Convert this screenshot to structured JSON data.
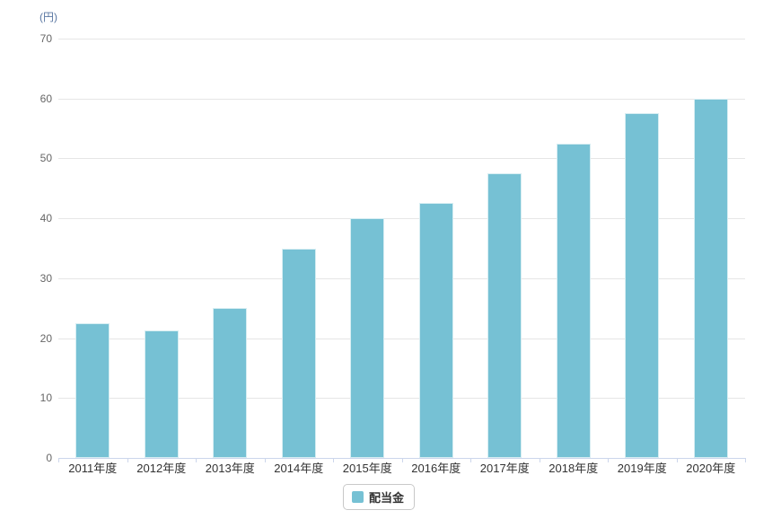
{
  "chart_data": {
    "type": "bar",
    "title": "",
    "unit_label": "(円)",
    "xlabel": "",
    "ylabel": "(円)",
    "categories": [
      "2011年度",
      "2012年度",
      "2013年度",
      "2014年度",
      "2015年度",
      "2016年度",
      "2017年度",
      "2018年度",
      "2019年度",
      "2020年度"
    ],
    "series": [
      {
        "name": "配当金",
        "values": [
          22.5,
          21.25,
          25,
          35,
          40,
          42.5,
          47.5,
          52.5,
          57.5,
          60
        ]
      }
    ],
    "ylim": [
      0,
      70
    ],
    "yticks": [
      0,
      10,
      20,
      30,
      40,
      50,
      60,
      70
    ],
    "grid": true,
    "legend_position": "bottom-center",
    "legend": {
      "label": "配当金"
    },
    "colors": {
      "bar": "#76C1D4",
      "gridline": "#E6E6E6",
      "axis_line": "#CCD6EB",
      "tick": "#CCD6EB",
      "y_label": "#666666",
      "x_label": "#333333",
      "unit_label": "#5B78A3",
      "legend_border": "#C9C9C9",
      "legend_text": "#333333",
      "background": "#FFFFFF"
    }
  }
}
